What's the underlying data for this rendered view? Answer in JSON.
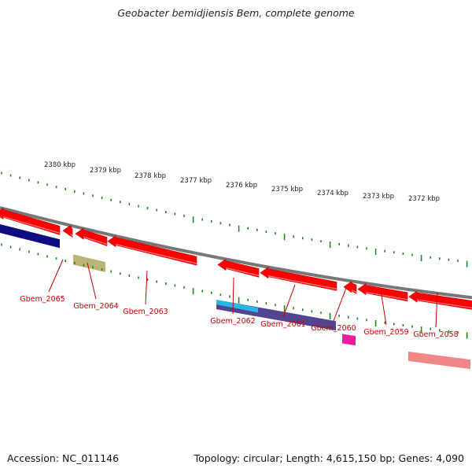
{
  "title": "Geobacter bemidjiensis Bem, complete genome",
  "footer": {
    "accession": "Accession: NC_011146",
    "summary": "Topology: circular; Length: 4,615,150 bp; Genes: 4,090"
  },
  "colors": {
    "backbone": "#777777",
    "tick": "#1a8a1a",
    "gene_label": "#cc0000",
    "gene_arrow": "#ff0000",
    "navy": "#00007a",
    "olive": "#b8b070",
    "purple": "#4a3a8a",
    "cyan": "#22c0ee",
    "magenta": "#ee1199",
    "salmon": "#f08080"
  },
  "scale": {
    "unit": "kbp",
    "labels": [
      "2380 kbp",
      "2379 kbp",
      "2378 kbp",
      "2377 kbp",
      "2376 kbp",
      "2375 kbp",
      "2374 kbp",
      "2373 kbp",
      "2372 kbp"
    ]
  },
  "genes": [
    {
      "label": "Gbem_2065"
    },
    {
      "label": "Gbem_2064"
    },
    {
      "label": "Gbem_2063"
    },
    {
      "label": "Gbem_2062"
    },
    {
      "label": "Gbem_2061"
    },
    {
      "label": "Gbem_2060"
    },
    {
      "label": "Gbem_2059"
    },
    {
      "label": "Gbem_2058"
    }
  ]
}
